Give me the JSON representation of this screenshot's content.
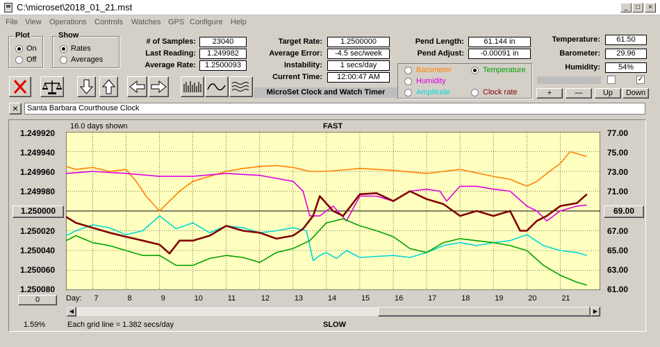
{
  "window": {
    "title": "C:\\microset\\2018_01_21.mst"
  },
  "menu": [
    "File",
    "View",
    "Operations",
    "Controls",
    "Watches",
    "GPS",
    "Configure",
    "Help"
  ],
  "plot_group": {
    "title": "Plot",
    "on": "On",
    "off": "Off",
    "selected": "On"
  },
  "show_group": {
    "title": "Show",
    "rates": "Rates",
    "averages": "Averages",
    "selected": "Rates"
  },
  "stats": {
    "samples_label": "# of Samples:",
    "samples": "23040",
    "last_label": "Last Reading:",
    "last": "1.249982",
    "avg_label": "Average Rate:",
    "avg": "1.2500093",
    "target_label": "Target Rate:",
    "target": "1.2500000",
    "err_label": "Average Error:",
    "err": "-4.5 sec/week",
    "inst_label": "Instability:",
    "inst": "1 secs/day",
    "time_label": "Current Time:",
    "time": "12:00:47 AM",
    "pend_len_label": "Pend Length:",
    "pend_len": "61.144 in",
    "pend_adj_label": "Pend Adjust:",
    "pend_adj": "-0.00091 in",
    "temp_label": "Temperature:",
    "temp": "61.50",
    "baro_label": "Barometer:",
    "baro": "29.96",
    "hum_label": "Humidity:",
    "hum": "54%"
  },
  "banner": "MicroSet Clock and Watch Timer",
  "aux_options": {
    "barometer": "Barometer",
    "temperature": "Temperature",
    "humidity": "Humidity",
    "amplitude": "Amplitude",
    "clock_rate": "Clock rate",
    "selected": "Temperature",
    "colors": {
      "barometer": "#ff8000",
      "temperature": "#00a000",
      "humidity": "#e000e0",
      "amplitude": "#00e0e0",
      "clock_rate": "#800000"
    }
  },
  "small_buttons": {
    "plus": "+",
    "minus": "—",
    "up": "Up",
    "down": "Down"
  },
  "description": {
    "close": "×",
    "text": "Santa Barbara Courthouse Clock"
  },
  "chart": {
    "days_shown": "16.0 days shown",
    "fast": "FAST",
    "slow": "SLOW",
    "left_ticks": [
      "1.249920",
      "1.249940",
      "1.249960",
      "1.249980",
      "1.250000",
      "1.250020",
      "1.250040",
      "1.250060",
      "1.250080"
    ],
    "left_center": "1.250000",
    "right_ticks": [
      "77.00",
      "75.00",
      "73.00",
      "71.00",
      "69.00",
      "67.00",
      "65.00",
      "63.00",
      "61.00"
    ],
    "right_center": "69.00",
    "day_label": "Day:",
    "days": [
      "7",
      "8",
      "9",
      "10",
      "11",
      "12",
      "13",
      "14",
      "15",
      "16",
      "17",
      "18",
      "19",
      "20",
      "21"
    ],
    "zero_button": "0",
    "percent": "1.59%",
    "grid_note": "Each grid line = 1.382 secs/day"
  },
  "chart_data": {
    "type": "line",
    "x_label": "Day:",
    "xlim": [
      6.2,
      22.2
    ],
    "ylim_left": [
      1.24992,
      1.25008
    ],
    "ylim_right": [
      61,
      77
    ],
    "series": [
      {
        "name": "Clock rate",
        "axis": "left",
        "color": "#800000",
        "x": [
          6,
          6.5,
          7,
          7.5,
          8,
          8.5,
          9,
          9.3,
          9.6,
          10,
          10.5,
          11,
          11.5,
          12,
          12.5,
          13,
          13.3,
          13.6,
          13.8,
          14.2,
          14.5,
          15,
          15.5,
          16,
          16.5,
          17,
          17.5,
          18,
          18.5,
          19,
          19.5,
          19.8,
          20,
          20.3,
          20.6,
          21,
          21.5,
          21.8
        ],
        "y": [
          1.250006,
          1.250012,
          1.250017,
          1.250022,
          1.250026,
          1.25003,
          1.250034,
          1.250043,
          1.25003,
          1.25003,
          1.250025,
          1.250015,
          1.25002,
          1.250022,
          1.250028,
          1.250025,
          1.250018,
          1.250005,
          1.249985,
          1.25,
          1.250005,
          1.249983,
          1.249982,
          1.24999,
          1.24998,
          1.249988,
          1.249993,
          1.250005,
          1.25,
          1.250005,
          1.25,
          1.25002,
          1.25002,
          1.25001,
          1.250005,
          1.249995,
          1.249992,
          1.249983
        ]
      },
      {
        "name": "Barometer",
        "axis": "right",
        "color": "#ff8000",
        "x": [
          6,
          6.5,
          7,
          7.5,
          8,
          8.3,
          8.6,
          9,
          9.3,
          9.6,
          10,
          10.5,
          11,
          11.5,
          12,
          12.5,
          13,
          13.5,
          14,
          15,
          16,
          17,
          18,
          19,
          19.5,
          20,
          20.3,
          20.6,
          21,
          21.3,
          21.8
        ],
        "y": [
          73.5,
          73.2,
          73.4,
          73.0,
          73.2,
          72.0,
          70.5,
          69.0,
          70.0,
          71.0,
          72.0,
          72.5,
          73.0,
          73.3,
          73.5,
          73.6,
          73.4,
          73.0,
          73.0,
          73.3,
          73.1,
          72.8,
          73.2,
          72.5,
          72.2,
          71.5,
          72.0,
          72.8,
          73.8,
          75.0,
          74.5
        ]
      },
      {
        "name": "Humidity",
        "axis": "right",
        "color": "#e000e0",
        "x": [
          6,
          7,
          8,
          9,
          10,
          11,
          12,
          13,
          13.3,
          13.5,
          13.8,
          14.2,
          14.6,
          15,
          15.5,
          16,
          16.5,
          17,
          17.4,
          17.6,
          18,
          18.5,
          19,
          19.5,
          20,
          20.3,
          20.6,
          21,
          21.5,
          21.8
        ],
        "y": [
          72.8,
          73.0,
          72.8,
          72.5,
          72.5,
          72.8,
          72.6,
          72.0,
          71.0,
          68.5,
          68.5,
          69.5,
          68.0,
          70.5,
          70.5,
          70.0,
          71.0,
          71.2,
          71.0,
          70.0,
          71.5,
          71.5,
          71.2,
          71.0,
          69.5,
          69.0,
          68.0,
          69.0,
          69.5,
          69.6
        ]
      },
      {
        "name": "Amplitude",
        "axis": "right",
        "color": "#00d8d8",
        "x": [
          6,
          6.5,
          7,
          7.5,
          8,
          8.5,
          9,
          9.5,
          10,
          10.5,
          11,
          11.5,
          12,
          12.5,
          13,
          13.4,
          13.6,
          13.8,
          14,
          14.3,
          14.6,
          15,
          15.5,
          16,
          16.5,
          17,
          17.5,
          18,
          18.5,
          19,
          19.5,
          20,
          20.5,
          21,
          21.5,
          21.8
        ],
        "y": [
          66.5,
          67.0,
          67.6,
          67.3,
          66.6,
          67.0,
          68.5,
          67.2,
          67.8,
          66.8,
          67.5,
          67.3,
          66.8,
          67.0,
          67.3,
          67.0,
          64.0,
          64.5,
          64.8,
          64.2,
          65.0,
          64.3,
          64.4,
          64.5,
          64.3,
          64.8,
          65.5,
          65.8,
          65.5,
          65.8,
          66.0,
          66.6,
          65.5,
          65.0,
          64.8,
          64.5
        ]
      },
      {
        "name": "Temperature",
        "axis": "right",
        "color": "#00a000",
        "x": [
          6,
          6.5,
          7,
          7.5,
          8,
          8.5,
          9,
          9.5,
          10,
          10.5,
          11,
          11.5,
          12,
          12.5,
          13,
          13.5,
          14,
          14.5,
          15,
          15.5,
          16,
          16.5,
          17,
          17.5,
          18,
          18.5,
          19,
          19.5,
          20,
          20.5,
          21,
          21.5,
          21.8
        ],
        "y": [
          66.0,
          66.5,
          65.8,
          65.5,
          65.0,
          64.5,
          64.5,
          63.5,
          63.5,
          64.2,
          64.5,
          64.3,
          63.8,
          64.8,
          65.2,
          66.0,
          67.8,
          68.2,
          67.5,
          67.0,
          66.4,
          65.2,
          64.8,
          65.8,
          66.2,
          66.0,
          65.8,
          65.5,
          65.0,
          63.5,
          62.5,
          61.8,
          61.5
        ]
      }
    ]
  }
}
